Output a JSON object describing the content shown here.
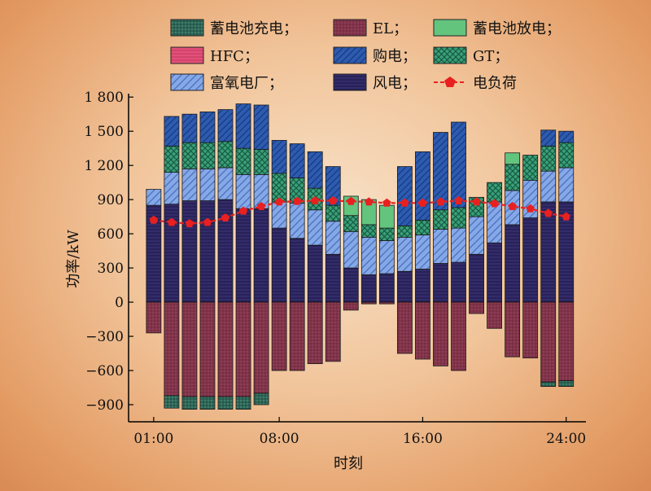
{
  "chart_data": {
    "type": "bar",
    "stacked": true,
    "xlabel": "时刻",
    "ylabel": "功率/kW",
    "ylim": [
      -1050,
      1830
    ],
    "yticks": [
      -900,
      -600,
      -300,
      0,
      300,
      600,
      900,
      1200,
      1500,
      1800
    ],
    "ytick_labels": [
      "−900",
      "−600",
      "−300",
      "0",
      "300",
      "600",
      "900",
      "1 200",
      "1 500",
      "1 800"
    ],
    "categories": [
      "01:00",
      "02:00",
      "03:00",
      "04:00",
      "05:00",
      "06:00",
      "07:00",
      "08:00",
      "09:00",
      "10:00",
      "11:00",
      "12:00",
      "13:00",
      "14:00",
      "15:00",
      "16:00",
      "17:00",
      "18:00",
      "19:00",
      "20:00",
      "21:00",
      "22:00",
      "23:00",
      "24:00"
    ],
    "xtick_labels": [
      {
        "hour": 1,
        "label": "01:00"
      },
      {
        "hour": 8,
        "label": "08:00"
      },
      {
        "hour": 16,
        "label": "16:00"
      },
      {
        "hour": 24,
        "label": "24:00"
      }
    ],
    "legend_position": "top",
    "series": [
      {
        "name": "蓄电池充电；",
        "key": "charge",
        "color": "#2f6b5a",
        "values": [
          0,
          -110,
          -110,
          -110,
          -110,
          -110,
          -100,
          0,
          0,
          0,
          0,
          0,
          0,
          0,
          0,
          0,
          0,
          0,
          0,
          0,
          0,
          0,
          -40,
          -50
        ]
      },
      {
        "name": "EL；",
        "key": "el",
        "color": "#8c3a52",
        "values": [
          -270,
          -820,
          -830,
          -830,
          -830,
          -830,
          -800,
          -600,
          -600,
          -540,
          -520,
          -70,
          -15,
          -15,
          -450,
          -500,
          -560,
          -600,
          -100,
          -230,
          -480,
          -490,
          -700,
          -690
        ]
      },
      {
        "name": "蓄电池放电；",
        "key": "discharge",
        "color": "#5fc07a",
        "values": [
          0,
          0,
          0,
          0,
          0,
          0,
          0,
          0,
          0,
          0,
          0,
          170,
          220,
          200,
          0,
          0,
          0,
          0,
          0,
          0,
          100,
          0,
          0,
          0
        ]
      },
      {
        "name": "HFC；",
        "key": "hfc",
        "color": "#e4507a",
        "values": [
          0,
          0,
          0,
          0,
          0,
          0,
          0,
          0,
          0,
          0,
          0,
          0,
          0,
          0,
          0,
          0,
          0,
          0,
          0,
          0,
          0,
          0,
          0,
          0
        ]
      },
      {
        "name": "购电；",
        "key": "purchase",
        "color": "#2d5bb0",
        "values": [
          0,
          260,
          250,
          270,
          280,
          390,
          390,
          290,
          300,
          320,
          340,
          0,
          0,
          0,
          520,
          600,
          680,
          750,
          0,
          0,
          0,
          0,
          140,
          100
        ]
      },
      {
        "name": "GT；",
        "key": "gt",
        "color": "#2f8f6e",
        "values": [
          0,
          230,
          230,
          230,
          230,
          230,
          220,
          250,
          220,
          190,
          140,
          140,
          110,
          110,
          100,
          130,
          170,
          180,
          170,
          170,
          230,
          220,
          220,
          220
        ]
      },
      {
        "name": "富氧电厂；",
        "key": "oxy",
        "color": "#7a9ee0",
        "values": [
          140,
          280,
          280,
          280,
          280,
          300,
          300,
          230,
          310,
          310,
          290,
          320,
          330,
          290,
          300,
          300,
          300,
          300,
          330,
          360,
          300,
          330,
          270,
          300
        ]
      },
      {
        "name": "风电；",
        "key": "wind",
        "color": "#2f2a63",
        "values": [
          850,
          860,
          890,
          890,
          900,
          820,
          820,
          650,
          560,
          500,
          420,
          300,
          240,
          250,
          270,
          290,
          340,
          350,
          420,
          520,
          680,
          740,
          880,
          880
        ]
      }
    ],
    "line": {
      "name": "电负荷",
      "color": "#e82020",
      "values": [
        720,
        700,
        690,
        700,
        740,
        800,
        840,
        880,
        885,
        890,
        890,
        885,
        880,
        870,
        870,
        870,
        880,
        890,
        880,
        865,
        840,
        820,
        780,
        750
      ]
    }
  }
}
